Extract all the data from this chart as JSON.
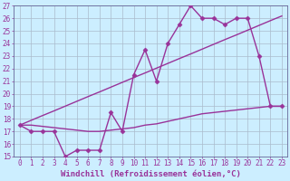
{
  "xlabel": "Windchill (Refroidissement éolien,°C)",
  "x_hours": [
    0,
    1,
    2,
    3,
    4,
    5,
    6,
    7,
    8,
    9,
    10,
    11,
    12,
    13,
    14,
    15,
    16,
    17,
    18,
    19,
    20,
    21,
    22,
    23
  ],
  "main_y": [
    17.5,
    17.0,
    17.0,
    17.0,
    15.0,
    15.5,
    15.5,
    15.5,
    18.5,
    17.0,
    21.5,
    23.5,
    21.0,
    24.0,
    25.5,
    27.0,
    26.0,
    26.0,
    25.5,
    26.0,
    26.0,
    23.0,
    19.0,
    19.0
  ],
  "linear_y": [
    17.5,
    17.88,
    18.26,
    18.63,
    19.01,
    19.39,
    19.77,
    20.14,
    20.52,
    20.9,
    21.28,
    21.65,
    22.03,
    22.41,
    22.79,
    23.16,
    23.54,
    23.92,
    24.3,
    24.67,
    25.05,
    25.43,
    25.81,
    26.18
  ],
  "flat_y": [
    17.5,
    17.5,
    17.4,
    17.3,
    17.2,
    17.1,
    17.0,
    17.0,
    17.1,
    17.2,
    17.3,
    17.5,
    17.6,
    17.8,
    18.0,
    18.2,
    18.4,
    18.5,
    18.6,
    18.7,
    18.8,
    18.9,
    19.0,
    19.0
  ],
  "ylim": [
    15,
    27
  ],
  "xlim_min": -0.5,
  "xlim_max": 23.5,
  "bg_color": "#cceeff",
  "grid_color": "#aabbcc",
  "line_color": "#993399",
  "line_width": 1.0,
  "marker": "D",
  "marker_size": 2.5,
  "tick_fontsize": 5.5,
  "xlabel_fontsize": 6.5
}
